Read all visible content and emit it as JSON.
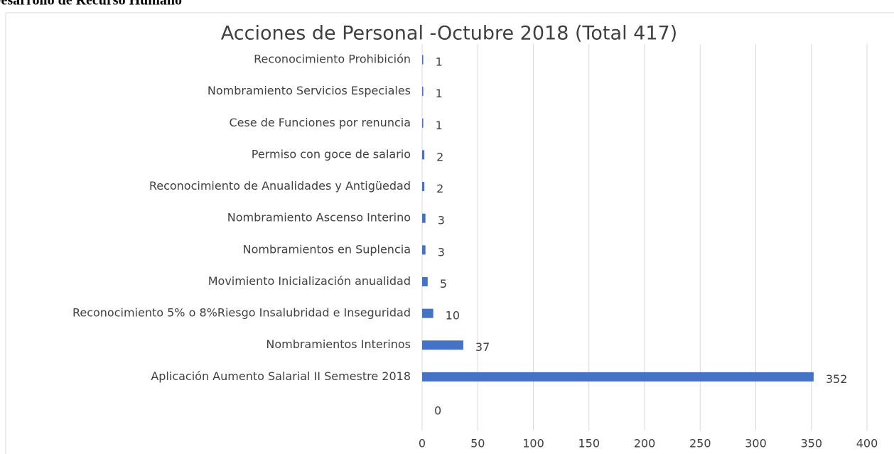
{
  "page_heading": "Desarrollo de Recurso Humano",
  "chart_data": {
    "type": "barh",
    "title": "Acciones de Personal -Octubre 2018 (Total 417)",
    "categories": [
      "Reconocimiento Prohibición",
      "Nombramiento Servicios Especiales",
      "Cese de Funciones por renuncia",
      "Permiso con goce de salario",
      "Reconocimiento de Anualidades y Antigüedad",
      "Nombramiento Ascenso Interino",
      "Nombramientos en Suplencia",
      "Movimiento Inicialización anualidad",
      "Reconocimiento 5% o 8%Riesgo Insalubridad e Inseguridad",
      "Nombramientos Interinos",
      "Aplicación Aumento Salarial II Semestre 2018",
      null
    ],
    "values": [
      1,
      1,
      1,
      2,
      2,
      3,
      3,
      5,
      10,
      37,
      352,
      0
    ],
    "color": "#4472c4",
    "xlim": [
      0,
      400
    ],
    "xticks": [
      0,
      50,
      100,
      150,
      200,
      250,
      300,
      350,
      400
    ],
    "grid": true
  }
}
